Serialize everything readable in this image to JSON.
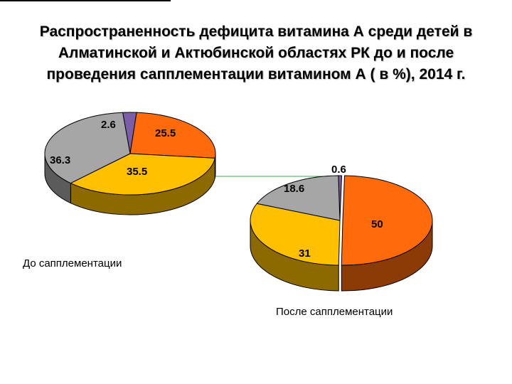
{
  "title": [
    "Распространенность дефицита витамина А среди детей в",
    "Алматинской и Актюбинской областях РК до и после",
    "проведения сапплементации витамином А ( в %), 2014 г."
  ],
  "chart_data": [
    {
      "type": "pie",
      "caption": "До сапплементации",
      "slices": [
        {
          "value": 2.6,
          "label": "2.6",
          "color": "#7b5ea7"
        },
        {
          "value": 25.5,
          "label": "25.5",
          "color": "#ff6a0a"
        },
        {
          "value": 35.5,
          "label": "35.5",
          "color": "#ffc000"
        },
        {
          "value": 36.3,
          "label": "36.3",
          "color": "#a6a6a6"
        }
      ]
    },
    {
      "type": "pie",
      "caption": "После сапплементации",
      "slices": [
        {
          "value": 0.6,
          "label": "0.6",
          "color": "#7b5ea7"
        },
        {
          "value": 50,
          "label": "50",
          "color": "#ff6a0a"
        },
        {
          "value": 31,
          "label": "31",
          "color": "#ffc000"
        },
        {
          "value": 18.6,
          "label": "18.6",
          "color": "#a6a6a6"
        }
      ]
    }
  ]
}
